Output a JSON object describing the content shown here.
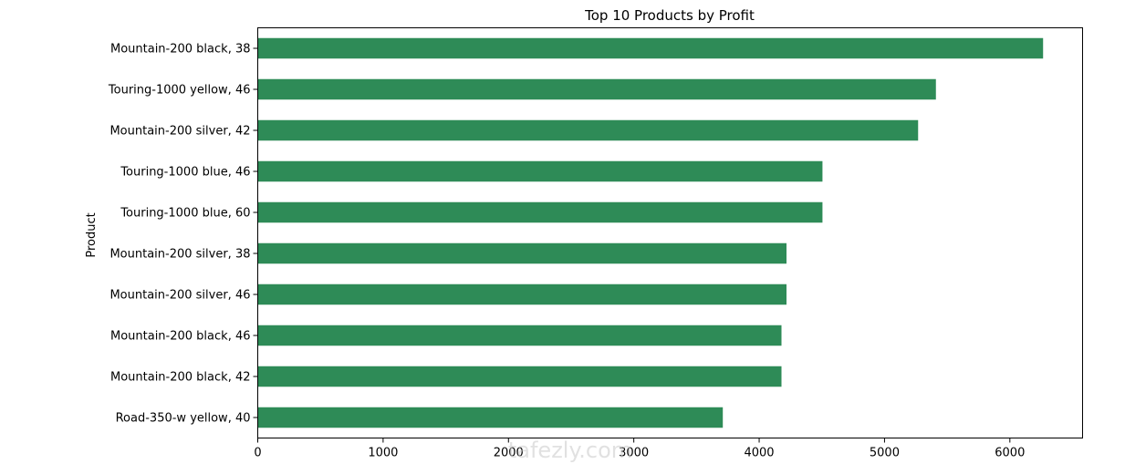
{
  "chart_data": {
    "type": "bar",
    "orientation": "horizontal",
    "title": "Top 10 Products by Profit",
    "xlabel": "",
    "ylabel": "Product",
    "categories": [
      "Mountain-200 black, 38",
      "Touring-1000 yellow, 46",
      "Mountain-200 silver, 42",
      "Touring-1000 blue, 46",
      "Touring-1000 blue, 60",
      "Mountain-200 silver, 38",
      "Mountain-200 silver, 46",
      "Mountain-200 black, 46",
      "Mountain-200 black, 42",
      "Road-350-w yellow, 40"
    ],
    "values": [
      6265,
      5410,
      5268,
      4505,
      4505,
      4218,
      4218,
      4178,
      4178,
      3710
    ],
    "xlim": [
      0,
      6580
    ],
    "xticks": [
      0,
      1000,
      2000,
      3000,
      4000,
      5000,
      6000
    ],
    "xtick_labels": [
      "0",
      "1000",
      "2000",
      "3000",
      "4000",
      "5000",
      "6000"
    ],
    "grid": false,
    "bar_color": "#2e8b57"
  },
  "watermark": {
    "text": "tafezly.com"
  }
}
